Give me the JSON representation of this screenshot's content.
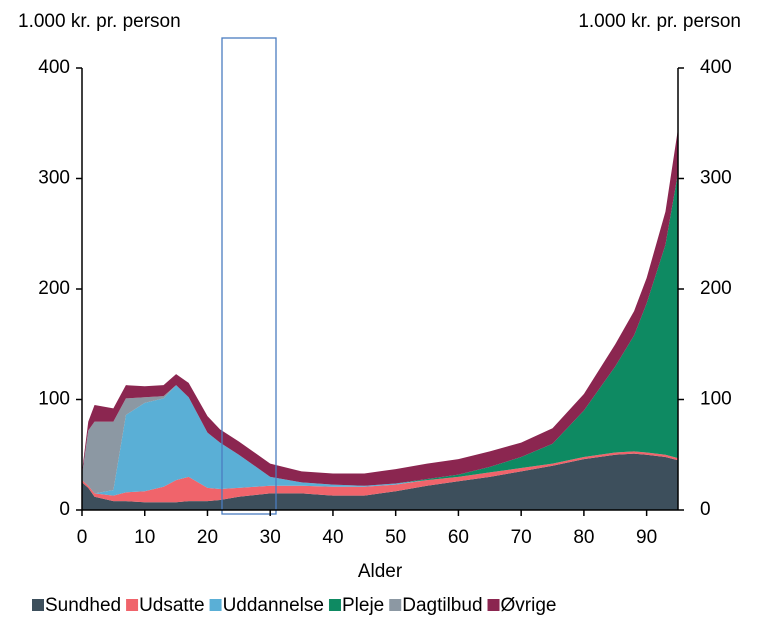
{
  "chart_data": {
    "type": "stacked_area",
    "y_label": "1.000 kr. pr. person",
    "y2_label": "1.000 kr. pr. person",
    "x_label": "Alder",
    "x": [
      0,
      1,
      2,
      5,
      7,
      10,
      13,
      15,
      17,
      20,
      22,
      25,
      30,
      35,
      40,
      45,
      50,
      55,
      60,
      65,
      70,
      75,
      80,
      85,
      88,
      90,
      93,
      95
    ],
    "series": [
      {
        "name": "Sundhed",
        "color": "#3d4f5c",
        "values": [
          25,
          20,
          12,
          8,
          8,
          7,
          7,
          7,
          8,
          8,
          9,
          12,
          15,
          15,
          13,
          13,
          17,
          22,
          26,
          30,
          35,
          40,
          46,
          50,
          51,
          50,
          48,
          45
        ]
      },
      {
        "name": "Udsatte",
        "color": "#f0646b",
        "values": [
          2,
          2,
          3,
          5,
          8,
          10,
          14,
          20,
          22,
          12,
          10,
          8,
          7,
          7,
          8,
          8,
          6,
          5,
          4,
          4,
          3,
          2,
          2,
          2,
          2,
          2,
          2,
          2
        ]
      },
      {
        "name": "Uddannelse",
        "color": "#5aafd6",
        "values": [
          0,
          0,
          0,
          5,
          70,
          80,
          80,
          86,
          72,
          50,
          42,
          30,
          8,
          3,
          2,
          1,
          1,
          0,
          0,
          0,
          0,
          0,
          0,
          0,
          0,
          0,
          0,
          0
        ]
      },
      {
        "name": "Pleje",
        "color": "#0e8a62",
        "values": [
          0,
          0,
          0,
          0,
          0,
          0,
          0,
          0,
          0,
          0,
          0,
          0,
          0,
          0,
          0,
          0,
          0,
          1,
          2,
          5,
          10,
          18,
          42,
          78,
          105,
          135,
          190,
          258
        ]
      },
      {
        "name": "Dagtilbud",
        "color": "#8c98a3",
        "values": [
          5,
          50,
          65,
          62,
          15,
          5,
          2,
          0,
          0,
          0,
          0,
          0,
          0,
          0,
          0,
          0,
          0,
          0,
          0,
          0,
          0,
          0,
          0,
          0,
          0,
          0,
          0,
          0
        ]
      },
      {
        "name": "Øvrige",
        "color": "#8b2650",
        "values": [
          3,
          8,
          15,
          12,
          12,
          10,
          10,
          10,
          13,
          15,
          12,
          12,
          12,
          10,
          10,
          11,
          13,
          14,
          14,
          14,
          13,
          14,
          15,
          20,
          22,
          23,
          30,
          40
        ]
      }
    ],
    "xlim": [
      0,
      95
    ],
    "xticks": [
      0,
      10,
      20,
      30,
      40,
      50,
      60,
      70,
      80,
      90
    ],
    "ylim": [
      0,
      400
    ],
    "yticks": [
      0,
      100,
      200,
      300,
      400
    ],
    "y2lim": [
      0,
      400
    ],
    "y2ticks": [
      0,
      100,
      200,
      300,
      400
    ]
  }
}
